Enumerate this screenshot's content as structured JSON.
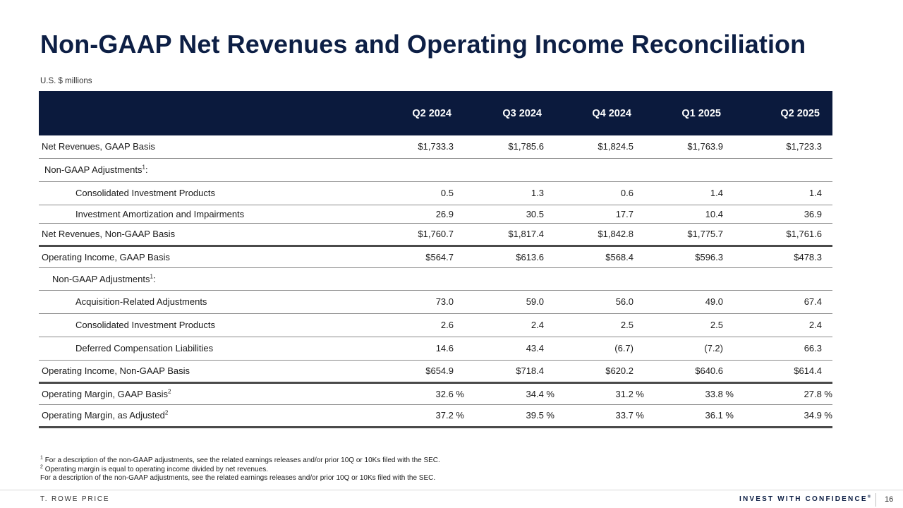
{
  "title": "Non-GAAP Net Revenues and Operating Income Reconciliation",
  "units": "U.S. $ millions",
  "table": {
    "columns": [
      "Q2 2024",
      "Q3 2024",
      "Q4 2024",
      "Q1 2025",
      "Q2 2025"
    ],
    "rows": [
      {
        "label": "Net Revenues, GAAP Basis",
        "values": [
          "$1,733.3",
          "$1,785.6",
          "$1,824.5",
          "$1,763.9",
          "$1,723.3"
        ]
      },
      {
        "label": "Non-GAAP Adjustments",
        "note": "1",
        "suffix": ":"
      },
      {
        "label": "Consolidated Investment Products",
        "values": [
          "0.5",
          "1.3",
          "0.6",
          "1.4",
          "1.4"
        ]
      },
      {
        "label": "Investment Amortization and Impairments",
        "values": [
          "26.9",
          "30.5",
          "17.7",
          "10.4",
          "36.9"
        ]
      },
      {
        "label": "Net Revenues, Non-GAAP Basis",
        "values": [
          "$1,760.7",
          "$1,817.4",
          "$1,842.8",
          "$1,775.7",
          "$1,761.6"
        ]
      },
      {
        "label": "Operating Income, GAAP Basis",
        "values": [
          "$564.7",
          "$613.6",
          "$568.4",
          "$596.3",
          "$478.3"
        ]
      },
      {
        "label": "Non-GAAP Adjustments",
        "note": "1",
        "suffix": ":"
      },
      {
        "label": "Acquisition-Related Adjustments",
        "values": [
          "73.0",
          "59.0",
          "56.0",
          "49.0",
          "67.4"
        ]
      },
      {
        "label": "Consolidated Investment Products",
        "values": [
          "2.6",
          "2.4",
          "2.5",
          "2.5",
          "2.4"
        ]
      },
      {
        "label": "Deferred Compensation Liabilities",
        "values": [
          "14.6",
          "43.4",
          "(6.7)",
          "(7.2)",
          "66.3"
        ]
      },
      {
        "label": "Operating Income, Non-GAAP Basis",
        "values": [
          "$654.9",
          "$718.4",
          "$620.2",
          "$640.6",
          "$614.4"
        ]
      },
      {
        "label": "Operating Margin, GAAP Basis",
        "note": "2",
        "values": [
          "32.6 %",
          "34.4 %",
          "31.2 %",
          "33.8 %",
          "27.8 %"
        ]
      },
      {
        "label": "Operating Margin, as Adjusted",
        "note": "2",
        "values": [
          "37.2 %",
          "39.5 %",
          "33.7 %",
          "36.1 %",
          "34.9 %"
        ]
      }
    ]
  },
  "footnotes": [
    {
      "mark": "1",
      "text": "For a description of the non-GAAP adjustments, see the related earnings releases and/or prior 10Q or 10Ks filed with the SEC."
    },
    {
      "mark": "2",
      "text": "Operating margin is equal to operating income divided by net revenues."
    },
    {
      "mark": "",
      "text": "For a description of the non-GAAP adjustments, see the related earnings releases and/or prior 10Q or 10Ks filed with the SEC."
    }
  ],
  "footer": {
    "brand": "T. ROWE PRICE",
    "tagline": "INVEST WITH CONFIDENCE",
    "tagline_mark": "®",
    "page_number": "16"
  },
  "colors": {
    "header_bg": "#0b1a3d",
    "title": "#0d1f45"
  }
}
